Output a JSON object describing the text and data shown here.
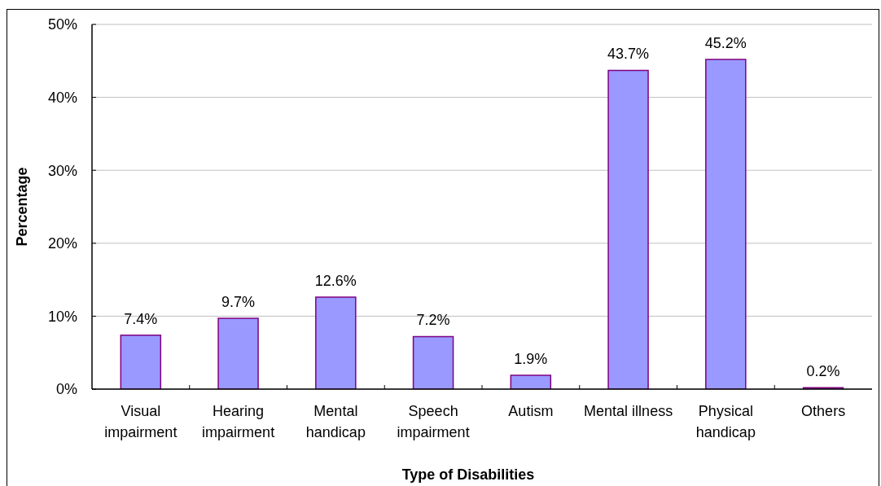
{
  "chart_data": {
    "type": "bar",
    "xlabel": "Type of Disabilities",
    "ylabel": "Percentage",
    "categories": [
      "Visual impairment",
      "Hearing impairment",
      "Mental handicap",
      "Speech impairment",
      "Autism",
      "Mental illness",
      "Physical handicap",
      "Others"
    ],
    "values": [
      7.4,
      9.7,
      12.6,
      7.2,
      1.9,
      43.7,
      45.2,
      0.2
    ],
    "color": "#9999ff",
    "value_labels": [
      "7.4%",
      "9.7%",
      "12.6%",
      "7.2%",
      "1.9%",
      "43.7%",
      "45.2%",
      "0.2%"
    ],
    "ylim": [
      0,
      50
    ],
    "yticks": [
      {
        "value": 0,
        "label": "0%"
      },
      {
        "value": 10,
        "label": "10%"
      },
      {
        "value": 20,
        "label": "20%"
      },
      {
        "value": 30,
        "label": "30%"
      },
      {
        "value": 40,
        "label": "40%"
      },
      {
        "value": 50,
        "label": "50%"
      }
    ],
    "grid": "y"
  }
}
